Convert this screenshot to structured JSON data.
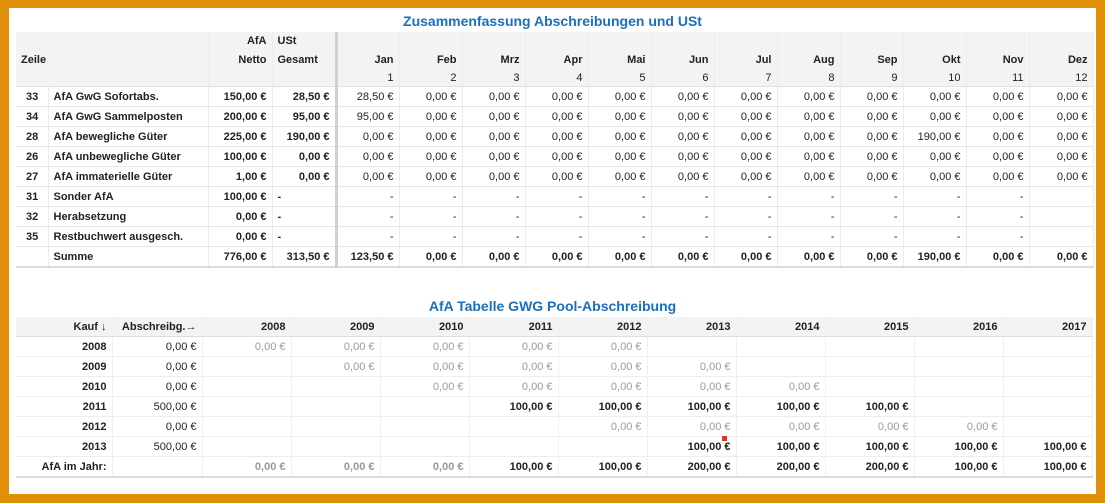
{
  "summary": {
    "title": "Zusammenfassung Abschreibungen und USt",
    "header": {
      "zeile": "Zeile",
      "afa_top": "AfA",
      "afa_bottom": "Netto",
      "ust_top": "USt",
      "ust_bottom": "Gesamt",
      "months": [
        "Jan",
        "Feb",
        "Mrz",
        "Apr",
        "Mai",
        "Jun",
        "Jul",
        "Aug",
        "Sep",
        "Okt",
        "Nov",
        "Dez"
      ],
      "month_numbers": [
        "1",
        "2",
        "3",
        "4",
        "5",
        "6",
        "7",
        "8",
        "9",
        "10",
        "11",
        "12"
      ]
    },
    "rows": [
      {
        "zeile": "33",
        "label": "AfA GwG Sofortabs.",
        "afa": "150,00 €",
        "ust": "28,50 €",
        "months": [
          "28,50 €",
          "0,00 €",
          "0,00 €",
          "0,00 €",
          "0,00 €",
          "0,00 €",
          "0,00 €",
          "0,00 €",
          "0,00 €",
          "0,00 €",
          "0,00 €",
          "0,00 €"
        ]
      },
      {
        "zeile": "34",
        "label": "AfA GwG Sammelposten",
        "afa": "200,00 €",
        "ust": "95,00 €",
        "months": [
          "95,00 €",
          "0,00 €",
          "0,00 €",
          "0,00 €",
          "0,00 €",
          "0,00 €",
          "0,00 €",
          "0,00 €",
          "0,00 €",
          "0,00 €",
          "0,00 €",
          "0,00 €"
        ]
      },
      {
        "zeile": "28",
        "label": "AfA bewegliche Güter",
        "afa": "225,00 €",
        "ust": "190,00 €",
        "months": [
          "0,00 €",
          "0,00 €",
          "0,00 €",
          "0,00 €",
          "0,00 €",
          "0,00 €",
          "0,00 €",
          "0,00 €",
          "0,00 €",
          "190,00 €",
          "0,00 €",
          "0,00 €"
        ]
      },
      {
        "zeile": "26",
        "label": "AfA unbewegliche Güter",
        "afa": "100,00 €",
        "ust": "0,00 €",
        "months": [
          "0,00 €",
          "0,00 €",
          "0,00 €",
          "0,00 €",
          "0,00 €",
          "0,00 €",
          "0,00 €",
          "0,00 €",
          "0,00 €",
          "0,00 €",
          "0,00 €",
          "0,00 €"
        ]
      },
      {
        "zeile": "27",
        "label": "AfA immaterielle Güter",
        "afa": "1,00 €",
        "ust": "0,00 €",
        "months": [
          "0,00 €",
          "0,00 €",
          "0,00 €",
          "0,00 €",
          "0,00 €",
          "0,00 €",
          "0,00 €",
          "0,00 €",
          "0,00 €",
          "0,00 €",
          "0,00 €",
          "0,00 €"
        ]
      },
      {
        "zeile": "31",
        "label": "Sonder AfA",
        "afa": "100,00 €",
        "ust": "-",
        "months": [
          "-",
          "-",
          "-",
          "-",
          "-",
          "-",
          "-",
          "-",
          "-",
          "-",
          "-",
          ""
        ]
      },
      {
        "zeile": "32",
        "label": "Herabsetzung",
        "afa": "0,00 €",
        "ust": "-",
        "months": [
          "-",
          "-",
          "-",
          "-",
          "-",
          "-",
          "-",
          "-",
          "-",
          "-",
          "-",
          ""
        ]
      },
      {
        "zeile": "35",
        "label": "Restbuchwert ausgesch.",
        "afa": "0,00 €",
        "ust": "-",
        "months": [
          "-",
          "-",
          "-",
          "-",
          "-",
          "-",
          "-",
          "-",
          "-",
          "-",
          "-",
          ""
        ]
      }
    ],
    "sum": {
      "label": "Summe",
      "afa": "776,00 €",
      "ust": "313,50 €",
      "months": [
        "123,50 €",
        "0,00 €",
        "0,00 €",
        "0,00 €",
        "0,00 €",
        "0,00 €",
        "0,00 €",
        "0,00 €",
        "0,00 €",
        "190,00 €",
        "0,00 €",
        "0,00 €"
      ]
    }
  },
  "gwg": {
    "title": "AfA Tabelle GWG Pool-Abschreibung",
    "header": {
      "kauf": "Kauf ↓",
      "abschreibg": "Abschreibg.→",
      "years": [
        "2008",
        "2009",
        "2010",
        "2011",
        "2012",
        "2013",
        "2014",
        "2015",
        "2016",
        "2017"
      ]
    },
    "rows": [
      {
        "year": "2008",
        "amount": "0,00 €",
        "cells": [
          "0,00 €",
          "0,00 €",
          "0,00 €",
          "0,00 €",
          "0,00 €",
          "",
          "",
          "",
          "",
          ""
        ],
        "style": "grey"
      },
      {
        "year": "2009",
        "amount": "0,00 €",
        "cells": [
          "",
          "0,00 €",
          "0,00 €",
          "0,00 €",
          "0,00 €",
          "0,00 €",
          "",
          "",
          "",
          ""
        ],
        "style": "grey"
      },
      {
        "year": "2010",
        "amount": "0,00 €",
        "cells": [
          "",
          "",
          "0,00 €",
          "0,00 €",
          "0,00 €",
          "0,00 €",
          "0,00 €",
          "",
          "",
          ""
        ],
        "style": "grey"
      },
      {
        "year": "2011",
        "amount": "500,00 €",
        "cells": [
          "",
          "",
          "",
          "100,00 €",
          "100,00 €",
          "100,00 €",
          "100,00 €",
          "100,00 €",
          "",
          ""
        ],
        "style": "bold"
      },
      {
        "year": "2012",
        "amount": "0,00 €",
        "cells": [
          "",
          "",
          "",
          "",
          "0,00 €",
          "0,00 €",
          "0,00 €",
          "0,00 €",
          "0,00 €",
          ""
        ],
        "style": "grey"
      },
      {
        "year": "2013",
        "amount": "500,00 €",
        "cells": [
          "",
          "",
          "",
          "",
          "",
          "100,00 €",
          "100,00 €",
          "100,00 €",
          "100,00 €",
          "100,00 €"
        ],
        "style": "bold"
      }
    ],
    "footer": {
      "label": "AfA im Jahr:",
      "cells": [
        "0,00 €",
        "0,00 €",
        "0,00 €",
        "100,00 €",
        "100,00 €",
        "200,00 €",
        "200,00 €",
        "200,00 €",
        "100,00 €",
        "100,00 €"
      ]
    }
  }
}
